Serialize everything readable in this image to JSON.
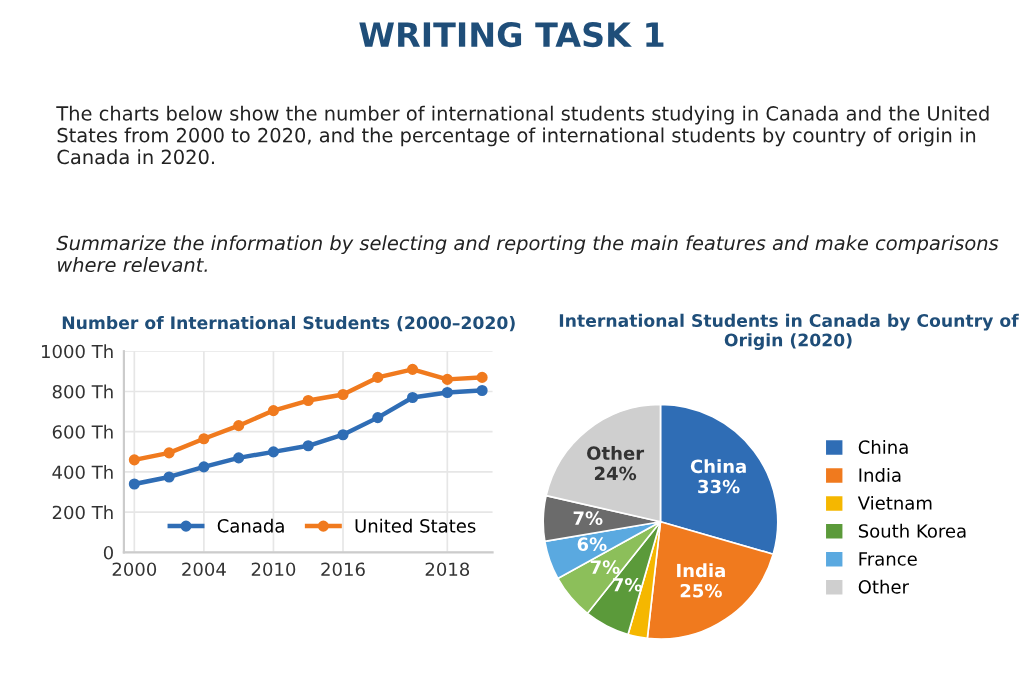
{
  "chart_data": [
    {
      "type": "other",
      "title": "WRITING TASK 1",
      "annotations": [
        "The charts below show the number of international students studying in Canada and the United States from 2000 to 2020, and the percentage of international students by country of origin in Canada in 2020.",
        "Summarize the information by selecting and reporting the main features and make comparisons where relevant."
      ]
    },
    {
      "type": "line",
      "title": "Number of International Students (2000–2020)",
      "ylim": [
        0,
        1000
      ],
      "categories": [
        "2000",
        null,
        "2004",
        null,
        "2010",
        null,
        "2016",
        null,
        null,
        "2018",
        null
      ],
      "yticks": [
        0,
        {
          "value": 200,
          "label": "200 Th"
        },
        {
          "value": 400,
          "label": "400 Th"
        },
        {
          "value": 600,
          "label": "600 Th"
        },
        {
          "value": 800,
          "label": "800 Th"
        },
        {
          "value": 1000,
          "label": "1000 Th"
        }
      ],
      "grid": true,
      "legend": "lower right",
      "marker": "circle",
      "line_style": "solid",
      "series": [
        {
          "name": "Canada",
          "color": "#2f6db5",
          "values": [
            340,
            375,
            425,
            470,
            500,
            530,
            585,
            670,
            770,
            795,
            805
          ]
        },
        {
          "name": "United States",
          "color": "#f07a1e",
          "values": [
            460,
            495,
            565,
            630,
            705,
            755,
            785,
            870,
            910,
            860,
            870
          ]
        }
      ]
    },
    {
      "type": "pie",
      "title": "International Students in Canada by Country of Origin (2020)",
      "legend": "right",
      "categories": [
        "China",
        "India",
        "Vietnam",
        "South Korea",
        null,
        "France",
        null,
        "Other"
      ],
      "values": [
        33,
        25,
        3,
        7,
        7,
        6,
        7,
        24
      ],
      "colors": [
        "#2f6db5",
        "#f07a1e",
        "#f5b700",
        "#5b9a3a",
        "#8cbf5a",
        "#5aa9e0",
        "#6b6b6b",
        "#cfcfcf"
      ],
      "value_labels": [
        "China\n33%",
        "India\n25%",
        null,
        "7%",
        "7%",
        "6%",
        "7%",
        "Other\n24%"
      ]
    }
  ]
}
